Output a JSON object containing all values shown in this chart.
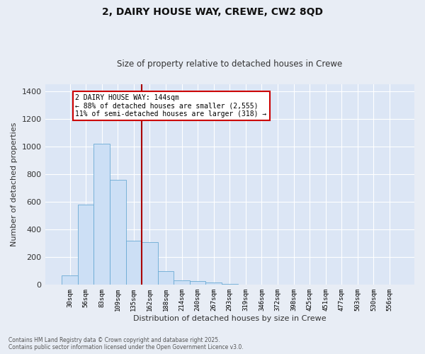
{
  "title_line1": "2, DAIRY HOUSE WAY, CREWE, CW2 8QD",
  "title_line2": "Size of property relative to detached houses in Crewe",
  "xlabel": "Distribution of detached houses by size in Crewe",
  "ylabel": "Number of detached properties",
  "bar_labels": [
    "30sqm",
    "56sqm",
    "83sqm",
    "109sqm",
    "135sqm",
    "162sqm",
    "188sqm",
    "214sqm",
    "240sqm",
    "267sqm",
    "293sqm",
    "319sqm",
    "346sqm",
    "372sqm",
    "398sqm",
    "425sqm",
    "451sqm",
    "477sqm",
    "503sqm",
    "530sqm",
    "556sqm"
  ],
  "bar_values": [
    70,
    580,
    1020,
    760,
    320,
    310,
    100,
    30,
    25,
    15,
    5,
    0,
    0,
    0,
    0,
    0,
    0,
    0,
    0,
    0,
    0
  ],
  "bar_color": "#ccdff5",
  "bar_edge_color": "#6aaad4",
  "vline_x": 4.5,
  "vline_color": "#aa0000",
  "annotation_text": "2 DAIRY HOUSE WAY: 144sqm\n← 88% of detached houses are smaller (2,555)\n11% of semi-detached houses are larger (318) →",
  "annotation_box_color": "#ffffff",
  "annotation_box_edge": "#cc0000",
  "ylim": [
    0,
    1450
  ],
  "yticks": [
    0,
    200,
    400,
    600,
    800,
    1000,
    1200,
    1400
  ],
  "fig_bg": "#e8edf5",
  "plot_bg": "#dce6f5",
  "grid_color": "#ffffff",
  "footer_line1": "Contains HM Land Registry data © Crown copyright and database right 2025.",
  "footer_line2": "Contains public sector information licensed under the Open Government Licence v3.0."
}
